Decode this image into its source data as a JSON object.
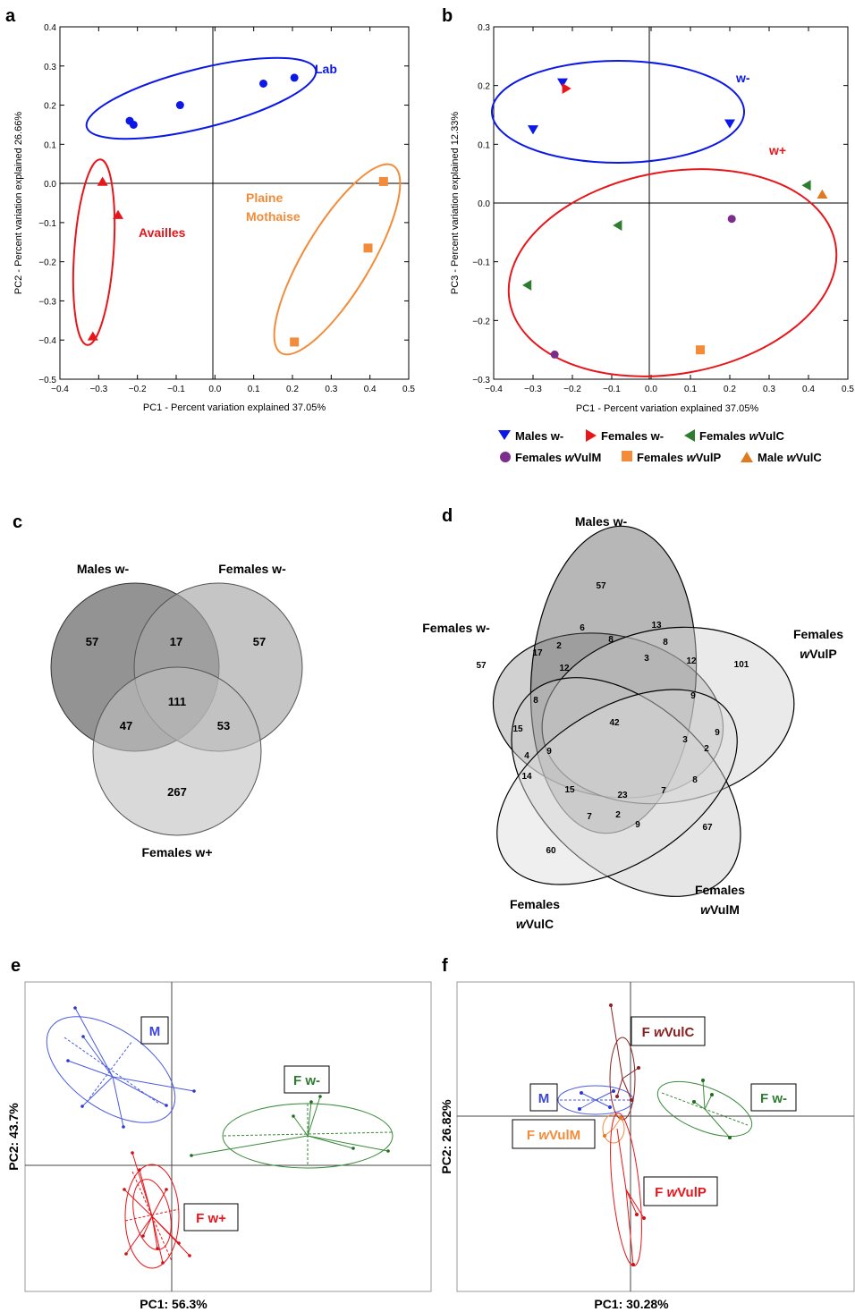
{
  "panel_labels": {
    "a": "a",
    "b": "b",
    "c": "c",
    "d": "d",
    "e": "e",
    "f": "f"
  },
  "colors": {
    "blue": "#0b18e6",
    "red": "#e8161b",
    "orange": "#f28c3a",
    "green": "#2e7d2e",
    "purple": "#7b2d8e",
    "darkred": "#8b2020"
  },
  "panel_a": {
    "xlabel": "PC1 - Percent variation explained 37.05%",
    "ylabel": "PC2 - Percent variation explained 26.66%",
    "xticks": [
      "−0.4",
      "−0.3",
      "−0.2",
      "−0.1",
      "0.0",
      "0.1",
      "0.2",
      "0.3",
      "0.4",
      "0.5"
    ],
    "yticks": [
      "0.4",
      "0.3",
      "0.2",
      "0.1",
      "0.0",
      "−0.1",
      "−0.2",
      "−0.3",
      "−0.4",
      "−0.5"
    ],
    "groups": {
      "lab": "Lab",
      "availles": "Availles",
      "plaine": "Plaine",
      "mothaise": "Mothaise"
    }
  },
  "panel_b": {
    "xlabel": "PC1 - Percent variation explained 37.05%",
    "ylabel": "PC3 - Percent variation explained 12.33%",
    "xticks": [
      "−0.4",
      "−0.3",
      "−0.2",
      "−0.1",
      "0.0",
      "0.1",
      "0.2",
      "0.3",
      "0.4",
      "0.5"
    ],
    "yticks": [
      "0.3",
      "0.2",
      "0.1",
      "0.0",
      "−0.1",
      "−0.2",
      "−0.3"
    ],
    "groups": {
      "wminus": "w-",
      "wplus": "w+"
    },
    "legend": {
      "males_wminus": "Males w-",
      "females_wminus": "Females w-",
      "females_wvulc_pre": "Females ",
      "females_wvulc_it": "w",
      "females_wvulc_post": "VulC",
      "females_wvulm_pre": "Females ",
      "females_wvulm_it": "w",
      "females_wvulm_post": "VulM",
      "females_wvulp_pre": "Females ",
      "females_wvulp_it": "w",
      "females_wvulp_post": "VulP",
      "male_wvulc_pre": "Male ",
      "male_wvulc_it": "w",
      "male_wvulc_post": "VulC"
    }
  },
  "chart_data": [
    {
      "type": "scatter",
      "xlabel": "PC1 - Percent variation explained 37.05%",
      "ylabel": "PC2 - Percent variation explained 26.66%",
      "xlim": [
        -0.4,
        0.5
      ],
      "ylim": [
        -0.5,
        0.4
      ],
      "grid": false,
      "series": [
        {
          "name": "Lab",
          "marker": "circle",
          "color": "#0b18e6",
          "points": [
            [
              -0.22,
              0.16
            ],
            [
              -0.21,
              0.15
            ],
            [
              -0.09,
              0.2
            ],
            [
              0.125,
              0.255
            ],
            [
              0.205,
              0.27
            ]
          ]
        },
        {
          "name": "Availles",
          "marker": "triangle-up",
          "color": "#e8161b",
          "points": [
            [
              -0.29,
              0.005
            ],
            [
              -0.25,
              -0.08
            ],
            [
              -0.315,
              -0.39
            ]
          ]
        },
        {
          "name": "Plaine Mothaise",
          "marker": "square",
          "color": "#f28c3a",
          "points": [
            [
              0.435,
              0.005
            ],
            [
              0.395,
              -0.165
            ],
            [
              0.205,
              -0.405
            ]
          ]
        }
      ]
    },
    {
      "type": "scatter",
      "xlabel": "PC1 - Percent variation explained 37.05%",
      "ylabel": "PC3 - Percent variation explained 12.33%",
      "xlim": [
        -0.4,
        0.5
      ],
      "ylim": [
        -0.3,
        0.3
      ],
      "grid": false,
      "series": [
        {
          "name": "Males w-",
          "marker": "triangle-down",
          "color": "#0b18e6",
          "points": [
            [
              -0.225,
              0.205
            ],
            [
              -0.3,
              0.125
            ],
            [
              0.2,
              0.135
            ]
          ]
        },
        {
          "name": "Females w-",
          "marker": "triangle-right",
          "color": "#e8161b",
          "points": [
            [
              -0.215,
              0.195
            ]
          ]
        },
        {
          "name": "Females wVulC",
          "marker": "triangle-left",
          "color": "#2e7d2e",
          "points": [
            [
              -0.085,
              -0.038
            ],
            [
              -0.315,
              -0.14
            ],
            [
              0.395,
              0.03
            ]
          ]
        },
        {
          "name": "Females wVulM",
          "marker": "circle",
          "color": "#7b2d8e",
          "points": [
            [
              0.205,
              -0.027
            ],
            [
              -0.245,
              -0.258
            ]
          ]
        },
        {
          "name": "Females wVulP",
          "marker": "square",
          "color": "#f28c3a",
          "points": [
            [
              0.125,
              -0.25
            ]
          ]
        },
        {
          "name": "Male wVulC",
          "marker": "triangle-up",
          "color": "#e07a1f",
          "points": [
            [
              0.435,
              0.015
            ]
          ]
        }
      ]
    }
  ],
  "panel_c": {
    "labels": {
      "males": "Males w-",
      "females_minus": "Females w-",
      "females_plus": "Females w+"
    },
    "numbers": {
      "n1": "57",
      "n2": "17",
      "n3": "57",
      "n4": "111",
      "n5": "47",
      "n6": "53",
      "n7": "267"
    }
  },
  "panel_d": {
    "labels": {
      "males": "Males w-",
      "females_minus": "Females w-",
      "wvulp_l1": "Females",
      "wvulp_it": "w",
      "wvulp_post": "VulP",
      "wvulm_l1": "Females",
      "wvulm_it": "w",
      "wvulm_post": "VulM",
      "wvulc_l1": "Females",
      "wvulc_it": "w",
      "wvulc_post": "VulC"
    },
    "numbers": [
      "57",
      "6",
      "13",
      "8",
      "8",
      "3",
      "12",
      "101",
      "17",
      "2",
      "12",
      "57",
      "8",
      "9",
      "15",
      "42",
      "9",
      "3",
      "9",
      "2",
      "4",
      "14",
      "8",
      "15",
      "23",
      "7",
      "7",
      "2",
      "9",
      "67",
      "60"
    ]
  },
  "panel_e": {
    "xlabel": "PC1: 56.3%",
    "ylabel": "PC2: 43.7%",
    "groups": {
      "m": "M",
      "fwminus": "F w-",
      "fwplus": "F w+"
    }
  },
  "panel_f": {
    "xlabel": "PC1: 30.28%",
    "ylabel": "PC2: 26.82%",
    "groups": {
      "m": "M",
      "fwminus": "F w-",
      "fwvulc_pre": "F ",
      "fwvulc_it": "w",
      "fwvulc_post": "VulC",
      "fwvulm_pre": "F ",
      "fwvulm_it": "w",
      "fwvulm_post": "VulM",
      "fwvulp_pre": "F ",
      "fwvulp_it": "w",
      "fwvulp_post": "VulP"
    }
  }
}
